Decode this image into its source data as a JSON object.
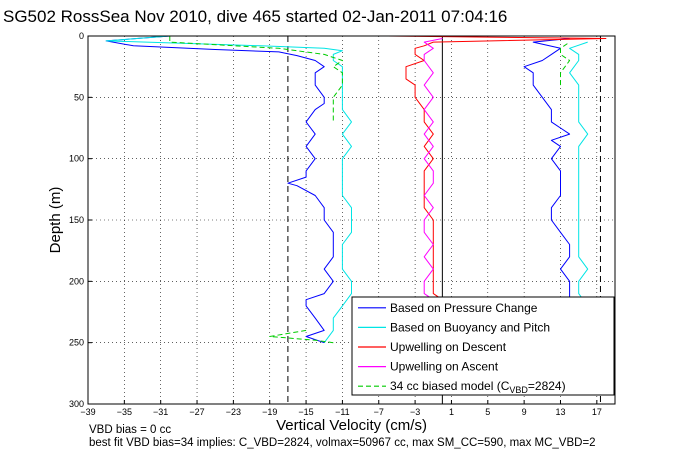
{
  "chart_data": {
    "type": "line",
    "title": "SG502 RossSea Nov 2010, dive 465 started 02-Jan-2011 07:04:16",
    "xlabel": "Vertical Velocity (cm/s)",
    "ylabel": "Depth (m)",
    "xlim": [
      -39,
      19
    ],
    "ylim": [
      300,
      0
    ],
    "y_reversed": true,
    "grid": "dotted",
    "x_ticks": [
      -39,
      -35,
      -31,
      -27,
      -23,
      -19,
      -15,
      -11,
      -7,
      -3,
      1,
      5,
      9,
      13,
      17
    ],
    "y_ticks": [
      0,
      50,
      100,
      150,
      200,
      250,
      300
    ],
    "reference_lines": [
      {
        "x": -17,
        "style": "dashed",
        "color": "#000000"
      },
      {
        "x": 0,
        "style": "solid",
        "color": "#000000"
      },
      {
        "x": 17.4,
        "style": "dashed",
        "color": "#000000"
      }
    ],
    "legend_position": "bottom-right",
    "series": [
      {
        "name": "Based on Pressure Change",
        "color": "#0000ff",
        "style": "solid",
        "descent": {
          "depth": [
            0,
            4,
            8,
            11,
            13,
            16,
            20,
            25,
            30,
            40,
            50,
            55,
            60,
            70,
            80,
            90,
            100,
            110,
            115,
            120,
            122,
            130,
            140,
            150,
            160,
            170,
            180,
            190,
            200,
            210,
            215,
            220,
            230,
            240,
            245,
            250
          ],
          "velocity": [
            -30,
            -37,
            -34,
            -25,
            -18,
            -16,
            -14,
            -13,
            -14,
            -14,
            -13,
            -13,
            -14,
            -15,
            -14,
            -15,
            -14,
            -15,
            -15,
            -17,
            -16,
            -14,
            -13,
            -13,
            -12,
            -12,
            -12,
            -13,
            -12,
            -13,
            -15,
            -15,
            -14,
            -13,
            -15,
            -13
          ]
        },
        "ascent": {
          "depth": [
            250,
            240,
            230,
            220,
            215,
            210,
            200,
            190,
            180,
            170,
            160,
            150,
            140,
            130,
            120,
            110,
            100,
            90,
            85,
            80,
            75,
            70,
            60,
            50,
            40,
            30,
            25,
            20,
            15,
            10,
            5,
            2
          ],
          "velocity": [
            14,
            14,
            14,
            14,
            14,
            14,
            14,
            13,
            14,
            14,
            13,
            12,
            12,
            13,
            13,
            13,
            12,
            13,
            12,
            14,
            13,
            12,
            12,
            11,
            10,
            10,
            9,
            11,
            12,
            13,
            10,
            14
          ]
        }
      },
      {
        "name": "Based on Buoyancy and Pitch",
        "color": "#00e5e5",
        "style": "solid",
        "descent": {
          "depth": [
            0,
            4,
            8,
            10,
            12,
            15,
            20,
            25,
            30,
            40,
            50,
            60,
            70,
            80,
            90,
            100,
            110,
            120,
            130,
            140,
            150,
            160,
            170,
            180,
            190,
            200,
            210,
            220,
            230,
            240,
            250
          ],
          "velocity": [
            -30,
            -37,
            -20,
            -13,
            -11,
            -12,
            -12,
            -11,
            -11,
            -11,
            -11,
            -11,
            -10,
            -11,
            -10,
            -11,
            -11,
            -11,
            -11,
            -10,
            -10,
            -10,
            -11,
            -11,
            -11,
            -10,
            -10,
            -11,
            -12,
            -12,
            -13
          ]
        },
        "ascent": {
          "depth": [
            250,
            240,
            230,
            220,
            210,
            200,
            190,
            180,
            170,
            160,
            150,
            140,
            130,
            120,
            110,
            100,
            90,
            80,
            70,
            60,
            50,
            40,
            30,
            20,
            15,
            10,
            5
          ],
          "velocity": [
            15,
            15,
            15,
            16,
            15,
            15,
            16,
            15,
            15,
            15,
            15,
            15,
            15,
            15,
            15,
            15,
            15,
            16,
            15,
            15,
            15,
            15,
            14,
            15,
            15,
            14,
            16
          ]
        }
      },
      {
        "name": "Upwelling on Descent",
        "color": "#ff0000",
        "style": "solid",
        "depth": [
          0,
          2,
          5,
          8,
          10,
          15,
          20,
          25,
          30,
          35,
          40,
          50,
          60,
          70,
          80,
          90,
          100,
          110,
          120,
          130,
          140,
          150,
          160,
          170,
          180,
          190,
          200,
          210,
          215
        ],
        "velocity": [
          -6,
          18,
          -1,
          -2,
          -3,
          -3,
          -2,
          -4,
          -4,
          -4,
          -3,
          -3,
          -2,
          -2,
          -1,
          -2,
          -1,
          -2,
          -2,
          -2,
          -2,
          -1,
          -1,
          -1,
          -1,
          -1,
          -1,
          -1,
          0
        ]
      },
      {
        "name": "Upwelling on Ascent",
        "color": "#ff00ff",
        "style": "solid",
        "depth": [
          215,
          210,
          200,
          190,
          180,
          170,
          160,
          150,
          140,
          130,
          120,
          110,
          100,
          90,
          80,
          70,
          60,
          50,
          40,
          30,
          20,
          15,
          10,
          5,
          2
        ],
        "velocity": [
          -1,
          -2,
          -2,
          -1,
          -2,
          -1,
          -2,
          -2,
          -1,
          -2,
          -1,
          -1,
          -2,
          -1,
          -2,
          -1,
          -2,
          -1,
          -2,
          -1,
          -2,
          -2,
          -1,
          -2,
          0
        ]
      },
      {
        "name": "34 cc biased model (C_VBD=2824)",
        "color": "#00cc00",
        "style": "dashed",
        "descent": {
          "depth": [
            0,
            5,
            10,
            15,
            20,
            25,
            30,
            40,
            50,
            60,
            70
          ],
          "velocity": [
            -30,
            -30,
            -18,
            -13,
            -11,
            -12,
            -11,
            -11,
            -12,
            -12,
            -12
          ]
        },
        "descent_deep": {
          "depth": [
            240,
            245,
            248,
            250
          ],
          "velocity": [
            -15,
            -19,
            -14,
            -12
          ]
        },
        "ascent": {
          "depth": [
            40,
            30,
            20,
            15,
            10,
            5
          ],
          "velocity": [
            13,
            13,
            14,
            13,
            13,
            14
          ]
        }
      }
    ],
    "legend": [
      "Based on Pressure Change",
      "Based on Buoyancy and Pitch",
      "Upwelling on Descent",
      "Upwelling on Ascent"
    ],
    "legend_model_main": "34 cc biased model (C",
    "legend_model_sub": "VBD",
    "legend_model_tail": "=2824)"
  },
  "footer": {
    "line1": "VBD bias = 0 cc",
    "line2": "best fit VBD bias=34 implies: C_VBD=2824, volmax=50967 cc, max SM_CC=590, max MC_VBD=2"
  }
}
